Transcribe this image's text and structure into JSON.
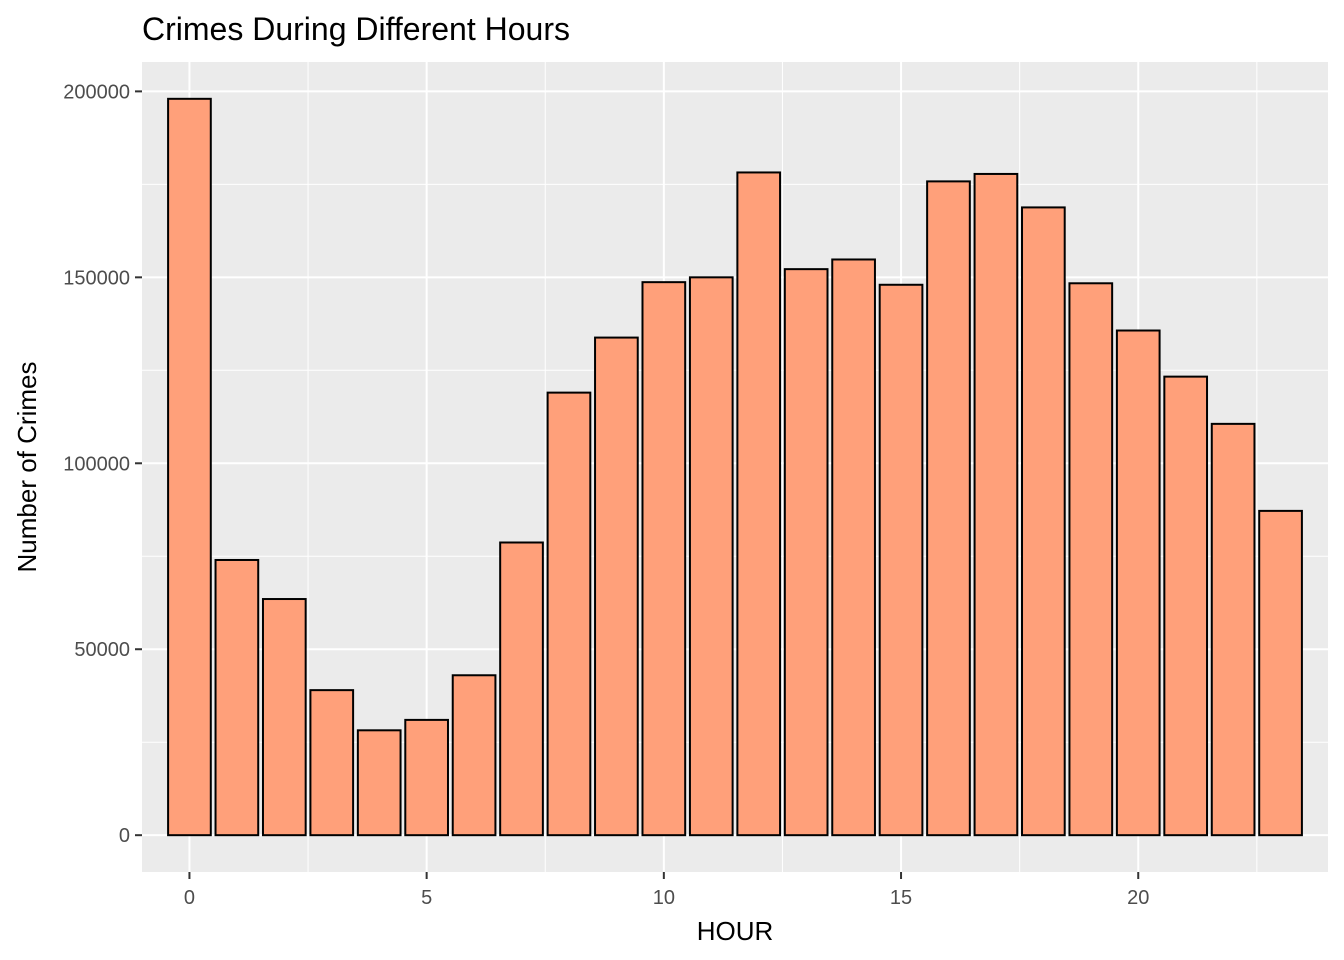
{
  "chart_data": {
    "type": "bar",
    "title": "Crimes During Different Hours",
    "xlabel": "HOUR",
    "ylabel": "Number of Crimes",
    "x": [
      0,
      1,
      2,
      3,
      4,
      5,
      6,
      7,
      8,
      9,
      10,
      11,
      12,
      13,
      14,
      15,
      16,
      17,
      18,
      19,
      20,
      21,
      22,
      23
    ],
    "values": [
      198000,
      74000,
      63500,
      39000,
      28200,
      31000,
      43000,
      78700,
      119000,
      133800,
      148700,
      150000,
      178200,
      152200,
      154800,
      148000,
      175800,
      177800,
      168800,
      148400,
      135700,
      123300,
      110600,
      87200
    ],
    "xticks": [
      0,
      5,
      10,
      15,
      20
    ],
    "yticks": [
      0,
      50000,
      100000,
      150000,
      200000
    ],
    "xlim": [
      -1.0,
      24.0
    ],
    "ylim": [
      -9900,
      207900
    ],
    "grid": true,
    "colors": {
      "bar_fill": "#FFA07A",
      "bar_stroke": "#000000",
      "panel": "#EBEBEB",
      "grid": "#FFFFFF"
    }
  }
}
